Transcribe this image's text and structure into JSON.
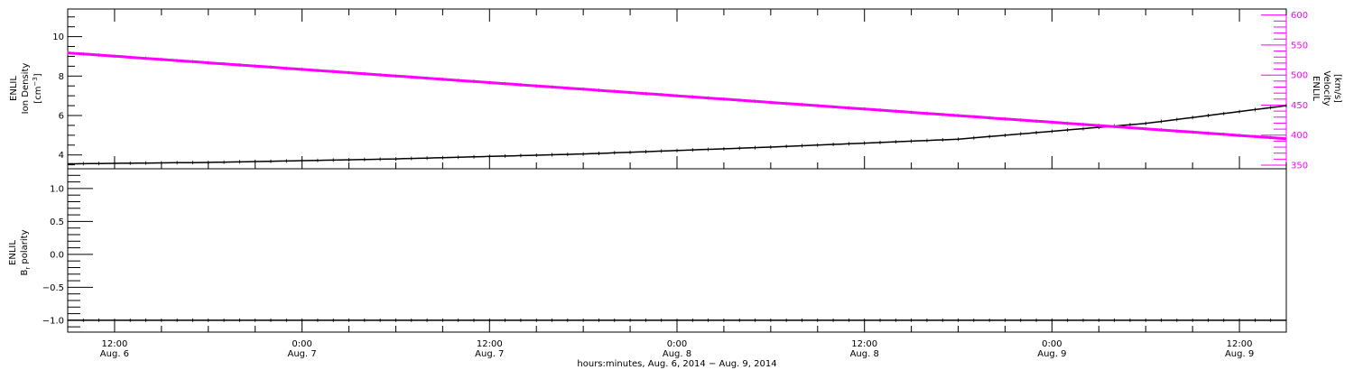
{
  "chart_data": [
    {
      "type": "line",
      "panel": "top",
      "x_range": [
        "2014-08-06T09:00",
        "2014-08-09T15:00"
      ],
      "y_left": {
        "label_line1": "ENLIL",
        "label_line2": "Ion Density",
        "label_unit": "[cm",
        "label_unit_sup": "−3",
        "label_unit_end": "]",
        "range": [
          3.3,
          11.4
        ],
        "ticks": [
          4,
          6,
          8,
          10
        ]
      },
      "y_right": {
        "label_line1": "ENLIL",
        "label_line2": "Velocity",
        "label_unit": "[km/s]",
        "range": [
          344,
          610
        ],
        "ticks": [
          350,
          400,
          450,
          500,
          550,
          600
        ],
        "color": "#ff00ff"
      },
      "series": [
        {
          "axis": "left",
          "color": "#000000",
          "x": [
            "2014-08-06T09:00",
            "2014-08-06T18:00",
            "2014-08-07T06:00",
            "2014-08-07T18:00",
            "2014-08-08T06:00",
            "2014-08-08T18:00",
            "2014-08-09T06:00",
            "2014-08-09T15:00"
          ],
          "y": [
            3.55,
            3.62,
            3.8,
            4.05,
            4.4,
            4.8,
            5.6,
            6.5
          ]
        },
        {
          "axis": "right",
          "color": "#ff00ff",
          "x": [
            "2014-08-06T09:00",
            "2014-08-09T15:00"
          ],
          "y": [
            537,
            394
          ]
        }
      ]
    },
    {
      "type": "line",
      "panel": "bottom",
      "y_left": {
        "label_line1": "ENLIL",
        "label_line2": "B",
        "label_sub": "r",
        "label_line2_end": " polarity",
        "range": [
          -1.18,
          1.3
        ],
        "ticks": [
          -1.0,
          -0.5,
          0.0,
          0.5,
          1.0
        ],
        "tick_labels": [
          "−1.0",
          "−0.5",
          "0.0",
          "0.5",
          "1.0"
        ]
      },
      "series": [
        {
          "axis": "left",
          "color": "#000000",
          "x": [
            "2014-08-06T09:00",
            "2014-08-09T15:00"
          ],
          "y": [
            -1.0,
            -1.0
          ]
        }
      ]
    }
  ],
  "x_axis": {
    "ticks": [
      {
        "x": "2014-08-06T12:00",
        "time": "12:00",
        "date": "Aug. 6"
      },
      {
        "x": "2014-08-07T00:00",
        "time": "0:00",
        "date": "Aug. 7"
      },
      {
        "x": "2014-08-07T12:00",
        "time": "12:00",
        "date": "Aug. 7"
      },
      {
        "x": "2014-08-08T00:00",
        "time": "0:00",
        "date": "Aug. 8"
      },
      {
        "x": "2014-08-08T12:00",
        "time": "12:00",
        "date": "Aug. 8"
      },
      {
        "x": "2014-08-09T00:00",
        "time": "0:00",
        "date": "Aug. 9"
      },
      {
        "x": "2014-08-09T12:00",
        "time": "12:00",
        "date": "Aug. 9"
      }
    ],
    "title": "hours:minutes, Aug.  6, 2014 − Aug.  9, 2014"
  }
}
